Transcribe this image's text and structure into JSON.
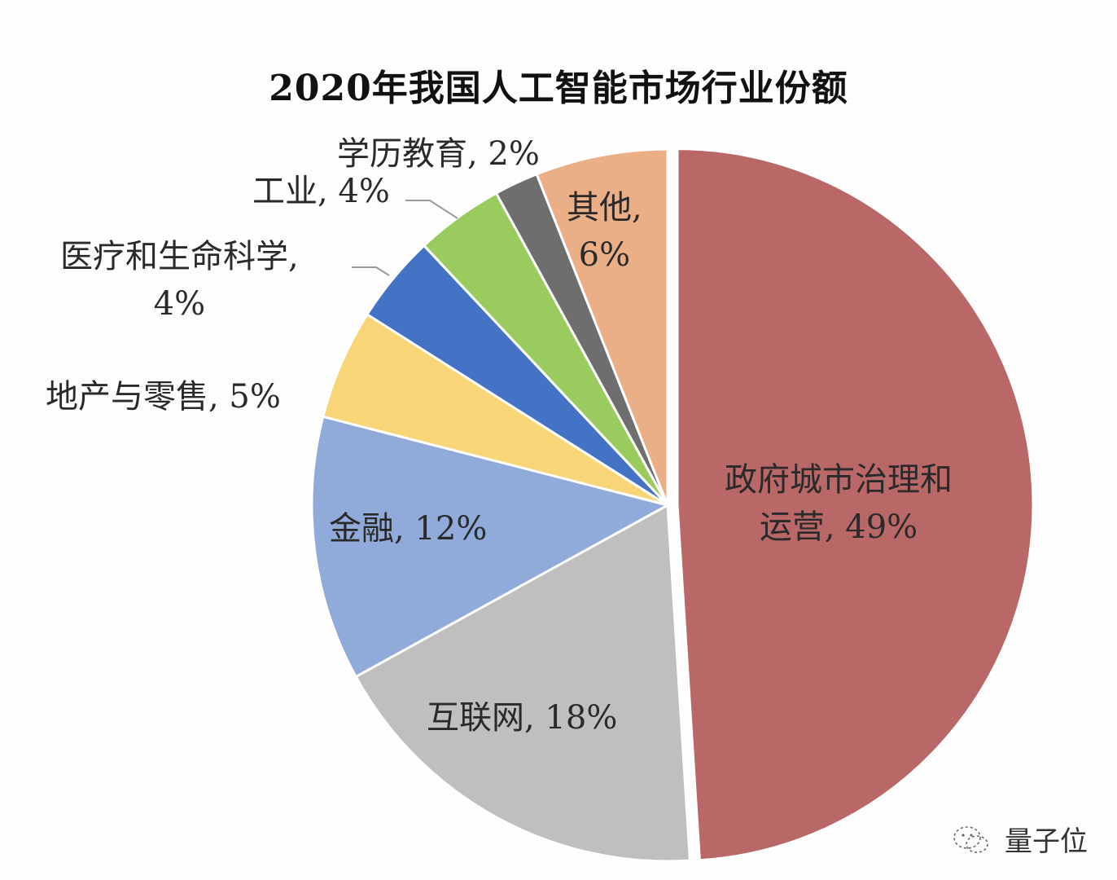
{
  "chart_data": {
    "type": "pie",
    "title": "2020年我国人工智能市场行业份额",
    "start_angle_deg": 0,
    "direction": "clockwise",
    "slices": [
      {
        "label": "政府城市治理和运营",
        "value": 49,
        "display": "政府城市治理和运营, 49%",
        "color": "#BA6767",
        "exploded": true
      },
      {
        "label": "互联网",
        "value": 18,
        "display": "互联网, 18%",
        "color": "#C0BFC0"
      },
      {
        "label": "金融",
        "value": 12,
        "display": "金融, 12%",
        "color": "#90AAD9"
      },
      {
        "label": "地产与零售",
        "value": 5,
        "display": "地产与零售, 5%",
        "color": "#F8D577"
      },
      {
        "label": "医疗和生命科学",
        "value": 4,
        "display": "医疗和生命科学, 4%",
        "color": "#4472C4"
      },
      {
        "label": "工业",
        "value": 4,
        "display": "工业, 4%",
        "color": "#9ACB5E"
      },
      {
        "label": "学历教育",
        "value": 2,
        "display": "学历教育, 2%",
        "color": "#6E6E6E"
      },
      {
        "label": "其他",
        "value": 6,
        "display": "其他, 6%",
        "color": "#EBAF88"
      }
    ],
    "legend": "none (data labels on slices)"
  },
  "labels": {
    "gov_line1": "政府城市治理和",
    "gov_line2": "运营, 49%",
    "internet": "互联网, 18%",
    "finance": "金融, 12%",
    "retail": "地产与零售, 5%",
    "medical_line1": "医疗和生命科学,",
    "medical_line2": "4%",
    "industry": "工业, 4%",
    "education": "学历教育, 2%",
    "other_line1": "其他,",
    "other_line2": "6%"
  },
  "watermark": {
    "text": "量子位",
    "icon": "wechat-icon"
  }
}
